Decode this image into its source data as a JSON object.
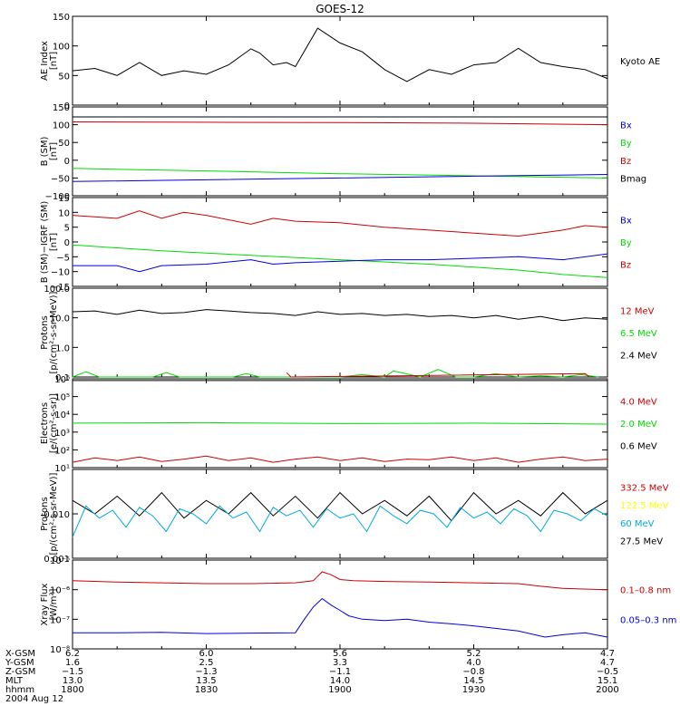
{
  "title": "GOES-12",
  "colors": {
    "black": "#000000",
    "red": "#cc0000",
    "green": "#00dd00",
    "blue": "#0000dd",
    "yellow": "#ffff00",
    "cyan": "#00aadd"
  },
  "chart_data": [
    {
      "type": "line",
      "ylabel": [
        "AE Index",
        "[nT]"
      ],
      "ylim": [
        0,
        150
      ],
      "yscale": "linear",
      "yticks": [
        {
          "v": 0,
          "label": "0"
        },
        {
          "v": 50,
          "label": "50"
        },
        {
          "v": 100,
          "label": "100"
        },
        {
          "v": 150,
          "label": "150"
        }
      ],
      "legend": [
        {
          "text": "Kyoto AE",
          "color": "#000000"
        }
      ],
      "series": [
        {
          "color": "#000000",
          "x": [
            0,
            5,
            10,
            15,
            20,
            25,
            30,
            35,
            40,
            42,
            45,
            48,
            50,
            55,
            60,
            65,
            70,
            75,
            80,
            85,
            90,
            95,
            100,
            105,
            110,
            115,
            120
          ],
          "y": [
            58,
            62,
            50,
            72,
            50,
            58,
            52,
            68,
            95,
            88,
            68,
            72,
            65,
            130,
            105,
            90,
            60,
            40,
            60,
            52,
            68,
            72,
            96,
            72,
            65,
            60,
            45
          ]
        }
      ]
    },
    {
      "type": "line",
      "ylabel": [
        "B (SM)",
        "[nT]"
      ],
      "ylim": [
        -100,
        150
      ],
      "yscale": "linear",
      "yticks": [
        {
          "v": -100,
          "label": "−100"
        },
        {
          "v": -50,
          "label": "−50"
        },
        {
          "v": 0,
          "label": "0"
        },
        {
          "v": 50,
          "label": "50"
        },
        {
          "v": 100,
          "label": "100"
        },
        {
          "v": 150,
          "label": "150"
        }
      ],
      "legend": [
        {
          "text": "Bx",
          "color": "#0000dd"
        },
        {
          "text": "By",
          "color": "#00dd00"
        },
        {
          "text": "Bz",
          "color": "#cc0000"
        },
        {
          "text": "Bmag",
          "color": "#000000"
        }
      ],
      "series": [
        {
          "color": "#000000",
          "x": [
            0,
            120
          ],
          "y": [
            122,
            122
          ]
        },
        {
          "color": "#cc0000",
          "x": [
            0,
            30,
            60,
            90,
            120
          ],
          "y": [
            108,
            107,
            106,
            104,
            100
          ]
        },
        {
          "color": "#00dd00",
          "x": [
            0,
            30,
            60,
            90,
            120
          ],
          "y": [
            -23,
            -30,
            -38,
            -44,
            -50
          ]
        },
        {
          "color": "#0000dd",
          "x": [
            0,
            30,
            60,
            90,
            120
          ],
          "y": [
            -60,
            -55,
            -50,
            -45,
            -40
          ]
        }
      ]
    },
    {
      "type": "line",
      "ylabel": [
        "B (SM)−IGRF (SM)",
        "[nT]"
      ],
      "ylim": [
        -15,
        15
      ],
      "yscale": "linear",
      "yticks": [
        {
          "v": -15,
          "label": "−15"
        },
        {
          "v": -10,
          "label": "−10"
        },
        {
          "v": -5,
          "label": "−5"
        },
        {
          "v": 0,
          "label": "0"
        },
        {
          "v": 5,
          "label": "5"
        },
        {
          "v": 10,
          "label": "10"
        },
        {
          "v": 15,
          "label": "15"
        }
      ],
      "legend": [
        {
          "text": "Bx",
          "color": "#0000dd"
        },
        {
          "text": "By",
          "color": "#00dd00"
        },
        {
          "text": "Bz",
          "color": "#cc0000"
        }
      ],
      "series": [
        {
          "color": "#cc0000",
          "x": [
            0,
            10,
            15,
            20,
            25,
            30,
            40,
            45,
            50,
            60,
            70,
            80,
            90,
            100,
            105,
            110,
            115,
            120
          ],
          "y": [
            9,
            8,
            10.5,
            8,
            10,
            9,
            6,
            8,
            7,
            6.5,
            5,
            4,
            3,
            2,
            3,
            4,
            5.5,
            5
          ]
        },
        {
          "color": "#00dd00",
          "x": [
            0,
            20,
            40,
            60,
            80,
            90,
            100,
            110,
            120
          ],
          "y": [
            -1,
            -3,
            -4.5,
            -6,
            -7.5,
            -8.5,
            -9.5,
            -11,
            -12
          ]
        },
        {
          "color": "#0000dd",
          "x": [
            0,
            10,
            15,
            20,
            30,
            40,
            45,
            50,
            60,
            70,
            80,
            90,
            100,
            110,
            120
          ],
          "y": [
            -8,
            -8,
            -10,
            -8,
            -7.5,
            -6,
            -7.5,
            -7,
            -6.5,
            -6,
            -6,
            -5.5,
            -5,
            -6,
            -4
          ]
        }
      ]
    },
    {
      "type": "line",
      "ylabel": [
        "Protons",
        "[p/(cm²-s-sr-MeV)]"
      ],
      "ylim": [
        0.1,
        100
      ],
      "yscale": "log",
      "yticks": [
        {
          "v": 0.1,
          "label": "0.1"
        },
        {
          "v": 1,
          "label": "1.0"
        },
        {
          "v": 10,
          "label": "10.0"
        },
        {
          "v": 100,
          "label": "100.0"
        }
      ],
      "legend": [
        {
          "text": "12 MeV",
          "color": "#cc0000"
        },
        {
          "text": "6.5 MeV",
          "color": "#00dd00"
        },
        {
          "text": "2.4 MeV",
          "color": "#000000"
        }
      ],
      "series": [
        {
          "color": "#000000",
          "x": [
            0,
            5,
            10,
            15,
            20,
            25,
            30,
            35,
            40,
            45,
            50,
            55,
            60,
            65,
            70,
            75,
            80,
            85,
            90,
            95,
            100,
            105,
            110,
            115,
            120
          ],
          "y": [
            16,
            17,
            13,
            18,
            14,
            15,
            19,
            17,
            15,
            14,
            12,
            16,
            13,
            14,
            12,
            13,
            11,
            12,
            10,
            12,
            9,
            11,
            8,
            10,
            9
          ]
        },
        {
          "color": "#00dd00",
          "x": [
            0,
            3,
            6,
            12,
            18,
            21,
            24,
            36,
            39,
            42,
            45,
            60,
            65,
            70,
            72,
            78,
            82,
            86,
            90,
            95,
            100,
            105,
            110,
            114,
            118
          ],
          "y": [
            0.1,
            0.15,
            0.1,
            0.1,
            0.1,
            0.14,
            0.1,
            0.1,
            0.13,
            0.1,
            0.1,
            0.1,
            0.12,
            0.1,
            0.16,
            0.1,
            0.18,
            0.1,
            0.1,
            0.13,
            0.1,
            0.11,
            0.1,
            0.12,
            0.1
          ]
        },
        {
          "color": "#cc0000",
          "x": [
            48,
            49,
            115,
            116
          ],
          "y": [
            0.14,
            0.1,
            0.13,
            0.1
          ]
        }
      ]
    },
    {
      "type": "line",
      "ylabel": [
        "Electrons",
        "[e/(cm²-s-sr)]"
      ],
      "ylim": [
        10,
        1000000
      ],
      "yscale": "log",
      "yticks": [
        {
          "v": 10,
          "label": "10¹"
        },
        {
          "v": 100,
          "label": "10²"
        },
        {
          "v": 1000,
          "label": "10³"
        },
        {
          "v": 10000,
          "label": "10⁴"
        },
        {
          "v": 100000,
          "label": "10⁵"
        },
        {
          "v": 1000000,
          "label": "10⁶"
        }
      ],
      "legend": [
        {
          "text": "4.0 MeV",
          "color": "#cc0000"
        },
        {
          "text": "2.0 MeV",
          "color": "#00dd00"
        },
        {
          "text": "0.6 MeV",
          "color": "#000000"
        }
      ],
      "series": [
        {
          "color": "#000000",
          "x": [
            0,
            120
          ],
          "y": [
            800000,
            800000
          ]
        },
        {
          "color": "#00dd00",
          "x": [
            0,
            30,
            60,
            90,
            120
          ],
          "y": [
            3200,
            3400,
            3000,
            3200,
            2800
          ]
        },
        {
          "color": "#cc0000",
          "x": [
            0,
            5,
            10,
            15,
            20,
            25,
            30,
            35,
            40,
            45,
            50,
            55,
            60,
            65,
            70,
            75,
            80,
            85,
            90,
            95,
            100,
            105,
            110,
            115,
            120
          ],
          "y": [
            20,
            35,
            25,
            40,
            22,
            30,
            45,
            25,
            35,
            20,
            30,
            40,
            25,
            35,
            22,
            30,
            28,
            40,
            25,
            35,
            20,
            30,
            40,
            25,
            30
          ]
        }
      ]
    },
    {
      "type": "line",
      "ylabel": [
        "Protons",
        "[p/(cm²-s-sr-MeV)]"
      ],
      "ylim": [
        0.001,
        0.1
      ],
      "yscale": "log",
      "yticks": [
        {
          "v": 0.001,
          "label": "0.001"
        },
        {
          "v": 0.01,
          "label": "0.010"
        }
      ],
      "legend": [
        {
          "text": "332.5 MeV",
          "color": "#cc0000"
        },
        {
          "text": "122.5 MeV",
          "color": "#ffff00"
        },
        {
          "text": "60 MeV",
          "color": "#00aadd"
        },
        {
          "text": "27.5 MeV",
          "color": "#000000"
        }
      ],
      "series": [
        {
          "color": "#000000",
          "x": [
            0,
            5,
            10,
            15,
            20,
            25,
            30,
            35,
            40,
            45,
            50,
            55,
            60,
            65,
            70,
            75,
            80,
            85,
            90,
            95,
            100,
            105,
            110,
            115,
            120
          ],
          "y": [
            0.02,
            0.01,
            0.025,
            0.009,
            0.03,
            0.008,
            0.02,
            0.01,
            0.03,
            0.009,
            0.025,
            0.008,
            0.03,
            0.01,
            0.02,
            0.009,
            0.025,
            0.007,
            0.03,
            0.01,
            0.02,
            0.009,
            0.03,
            0.01,
            0.02
          ]
        },
        {
          "color": "#00aadd",
          "x": [
            0,
            3,
            6,
            9,
            12,
            15,
            18,
            21,
            24,
            27,
            30,
            33,
            36,
            39,
            42,
            45,
            48,
            51,
            54,
            57,
            60,
            63,
            66,
            69,
            72,
            75,
            78,
            81,
            84,
            87,
            90,
            93,
            96,
            99,
            102,
            105,
            108,
            111,
            114,
            117,
            120
          ],
          "y": [
            0.003,
            0.015,
            0.008,
            0.012,
            0.005,
            0.014,
            0.009,
            0.004,
            0.013,
            0.01,
            0.006,
            0.015,
            0.008,
            0.011,
            0.004,
            0.014,
            0.009,
            0.012,
            0.005,
            0.013,
            0.008,
            0.01,
            0.004,
            0.015,
            0.009,
            0.006,
            0.012,
            0.01,
            0.005,
            0.014,
            0.008,
            0.011,
            0.006,
            0.013,
            0.009,
            0.004,
            0.012,
            0.01,
            0.007,
            0.013,
            0.009
          ]
        }
      ]
    },
    {
      "type": "line",
      "ylabel": [
        "Xray Flux",
        "[W/m²]"
      ],
      "ylim": [
        1e-08,
        1e-05
      ],
      "yscale": "log",
      "yticks": [
        {
          "v": 1e-08,
          "label": "10⁻⁸"
        },
        {
          "v": 1e-07,
          "label": "10⁻⁷"
        },
        {
          "v": 1e-06,
          "label": "10⁻⁶"
        },
        {
          "v": 1e-05,
          "label": "10⁻⁵"
        }
      ],
      "legend": [
        {
          "text": "0.1–0.8 nm",
          "color": "#cc0000"
        },
        {
          "text": "0.05–0.3 nm",
          "color": "#0000dd"
        }
      ],
      "series": [
        {
          "color": "#cc0000",
          "x": [
            0,
            10,
            20,
            30,
            40,
            50,
            54,
            56,
            58,
            60,
            63,
            70,
            80,
            90,
            100,
            105,
            110,
            120
          ],
          "y": [
            2e-06,
            1.8e-06,
            1.7e-06,
            1.6e-06,
            1.6e-06,
            1.7e-06,
            2e-06,
            4e-06,
            3.2e-06,
            2.2e-06,
            2e-06,
            1.9e-06,
            1.8e-06,
            1.7e-06,
            1.6e-06,
            1.3e-06,
            1.1e-06,
            1e-06
          ]
        },
        {
          "color": "#0000dd",
          "x": [
            0,
            10,
            20,
            30,
            40,
            50,
            52,
            54,
            56,
            58,
            60,
            62,
            65,
            70,
            75,
            80,
            85,
            90,
            100,
            106,
            110,
            115,
            120
          ],
          "y": [
            3.5e-08,
            3.5e-08,
            3.6e-08,
            3.3e-08,
            3.4e-08,
            3.5e-08,
            1e-07,
            2.6e-07,
            5e-07,
            3e-07,
            2e-07,
            1.3e-07,
            1e-07,
            9e-08,
            1e-07,
            8e-08,
            7e-08,
            6e-08,
            4e-08,
            2.5e-08,
            3e-08,
            3.5e-08,
            2.5e-08
          ]
        }
      ]
    }
  ],
  "footer": {
    "rows": [
      {
        "label": "X-GSM",
        "values": [
          "6.2",
          "6.0",
          "5.6",
          "5.2",
          "4.7"
        ]
      },
      {
        "label": "Y-GSM",
        "values": [
          "1.6",
          "2.5",
          "3.3",
          "4.0",
          "4.7"
        ]
      },
      {
        "label": "Z-GSM",
        "values": [
          "−1.5",
          "−1.3",
          "−1.1",
          "−0.8",
          "−0.5"
        ]
      },
      {
        "label": "MLT",
        "values": [
          "13.0",
          "13.5",
          "14.0",
          "14.5",
          "15.1"
        ]
      },
      {
        "label": "hhmm",
        "values": [
          "1800",
          "1830",
          "1900",
          "1930",
          "2000"
        ]
      }
    ],
    "date": "2004 Aug 12"
  }
}
